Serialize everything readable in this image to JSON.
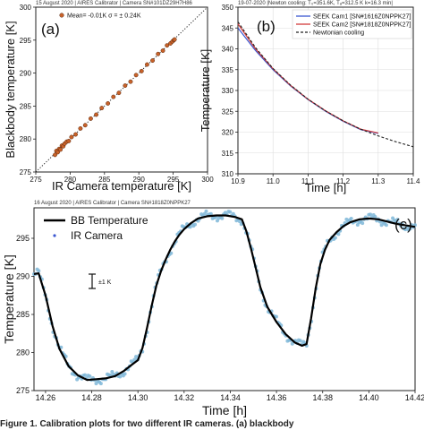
{
  "chart_data": [
    {
      "panel": "(a)",
      "type": "scatter",
      "header": "15 August 2020  |  AIRES Calibrator  |  Camera SN#101DZ29H7H86",
      "xlabel": "IR Camera temperature [K]",
      "ylabel": "Blackbody temperature [K]",
      "xlim": [
        275,
        300
      ],
      "ylim": [
        275,
        300
      ],
      "xticks": [
        "275",
        "280",
        "285",
        "290",
        "295",
        "300"
      ],
      "yticks": [
        "275",
        "280",
        "285",
        "290",
        "295",
        "300"
      ],
      "grid": false,
      "legend_position": "top-left",
      "legend": {
        "marker_color": "#c8622a",
        "text": "Mean= -0.01K   σ =  ±  0.24K"
      },
      "reference_line": {
        "x": [
          275,
          300
        ],
        "y": [
          275,
          300
        ],
        "style": "dotted"
      },
      "series": [
        {
          "color": "#c8622a",
          "x": [
            277.8,
            278.0,
            278.2,
            278.4,
            278.6,
            278.8,
            279.0,
            279.2,
            279.5,
            279.8,
            280.2,
            280.8,
            281.5,
            282.2,
            283.0,
            283.8,
            284.6,
            285.5,
            286.3,
            287.1,
            288.0,
            288.8,
            289.6,
            290.4,
            291.2,
            292.0,
            292.8,
            293.5,
            294.1,
            294.6,
            294.9,
            295.1,
            295.2
          ],
          "y": [
            277.6,
            278.2,
            278.0,
            278.5,
            278.4,
            279.0,
            278.9,
            279.3,
            279.6,
            279.7,
            280.3,
            280.7,
            281.6,
            282.1,
            283.1,
            283.7,
            284.7,
            285.4,
            286.4,
            287.0,
            288.1,
            288.7,
            289.7,
            290.3,
            291.3,
            291.9,
            292.9,
            293.4,
            294.2,
            294.5,
            294.8,
            295.0,
            295.1
          ]
        }
      ]
    },
    {
      "panel": "(b)",
      "type": "line",
      "header": "19-07-2020 |Newton cooling: T₀=351.6K, Tₐ=312.5 K k=16.3 min|",
      "xlabel": "Time [h]",
      "ylabel": "Temperature [K]",
      "xlim": [
        10.9,
        11.4
      ],
      "ylim": [
        310,
        350
      ],
      "xticks": [
        "10.9",
        "11.0",
        "11.1",
        "11.2",
        "11.3",
        "11.4"
      ],
      "yticks": [
        "310",
        "315",
        "320",
        "325",
        "330",
        "335",
        "340",
        "345",
        "350"
      ],
      "grid": true,
      "legend_position": "top-right",
      "series": [
        {
          "name": "SEEK Cam1 [SN#1616Z0NPPK27]",
          "color": "#3b57d1",
          "style": "solid",
          "x": [
            10.9,
            10.95,
            11.0,
            11.05,
            11.1,
            11.15,
            11.2,
            11.25,
            11.3
          ],
          "y": [
            345.0,
            339.6,
            335.0,
            331.1,
            327.8,
            325.0,
            322.6,
            320.6,
            319.7
          ]
        },
        {
          "name": "SEEK Cam2 [SN#1818Z0NPPK27]",
          "color": "#d23b3b",
          "style": "solid",
          "x": [
            10.9,
            10.95,
            11.0,
            11.05,
            11.1,
            11.15,
            11.2,
            11.25,
            11.3
          ],
          "y": [
            346.0,
            340.0,
            335.2,
            331.2,
            327.9,
            325.1,
            322.7,
            320.7,
            319.8
          ]
        },
        {
          "name": "Newtonian cooling",
          "color": "#222222",
          "style": "dashed",
          "x": [
            10.9,
            10.95,
            11.0,
            11.05,
            11.1,
            11.15,
            11.2,
            11.25,
            11.3,
            11.35,
            11.4
          ],
          "y": [
            346.5,
            340.3,
            335.3,
            331.3,
            327.9,
            325.1,
            322.7,
            320.7,
            319.1,
            317.7,
            316.5
          ]
        }
      ]
    },
    {
      "panel": "(c)",
      "type": "line",
      "header": "16 August 2020  |  AIRES Calibrator  |  Camera SN#1818Z0NPPK27",
      "xlabel": "Time [h]",
      "ylabel": "Temperature [K]",
      "xlim": [
        14.255,
        14.42
      ],
      "ylim": [
        275,
        299
      ],
      "xticks": [
        "14.26",
        "14.28",
        "14.30",
        "14.32",
        "14.34",
        "14.36",
        "14.38",
        "14.40",
        "14.42"
      ],
      "yticks": [
        "275",
        "280",
        "285",
        "290",
        "295"
      ],
      "grid": false,
      "legend_position": "top-left",
      "annotation": "±1 K",
      "series": [
        {
          "name": "BB Temperature",
          "color": "#000000",
          "style": "solid",
          "x": [
            14.255,
            14.257,
            14.26,
            14.263,
            14.266,
            14.27,
            14.274,
            14.278,
            14.282,
            14.286,
            14.29,
            14.294,
            14.297,
            14.3,
            14.302,
            14.304,
            14.306,
            14.308,
            14.31,
            14.312,
            14.314,
            14.316,
            14.318,
            14.32,
            14.323,
            14.326,
            14.33,
            14.334,
            14.338,
            14.342,
            14.345,
            14.347,
            14.349,
            14.351,
            14.353,
            14.356,
            14.36,
            14.364,
            14.368,
            14.371,
            14.373,
            14.375,
            14.377,
            14.379,
            14.381,
            14.383,
            14.386,
            14.389,
            14.392,
            14.396,
            14.4,
            14.404,
            14.408,
            14.412,
            14.416,
            14.42
          ],
          "y": [
            290.3,
            290.4,
            287.5,
            283.5,
            280.5,
            278.2,
            277.0,
            276.4,
            276.5,
            276.6,
            276.9,
            277.6,
            278.3,
            279.0,
            280.6,
            283.3,
            286.2,
            288.8,
            290.7,
            292.2,
            293.5,
            294.6,
            295.5,
            296.2,
            297.0,
            297.6,
            297.9,
            298.0,
            298.0,
            297.8,
            297.5,
            295.9,
            293.6,
            291.1,
            288.6,
            286.0,
            284.0,
            282.4,
            281.3,
            280.9,
            281.1,
            284.5,
            288.5,
            291.6,
            293.5,
            294.8,
            295.8,
            296.6,
            297.1,
            297.5,
            297.6,
            297.5,
            297.2,
            296.9,
            296.7,
            296.5
          ]
        },
        {
          "name": "IR Camera",
          "color": "#7fb7d8",
          "style": "markers"
        }
      ]
    }
  ],
  "caption": "Figure 1. Calibration plots for two different IR cameras. (a) blackbody"
}
